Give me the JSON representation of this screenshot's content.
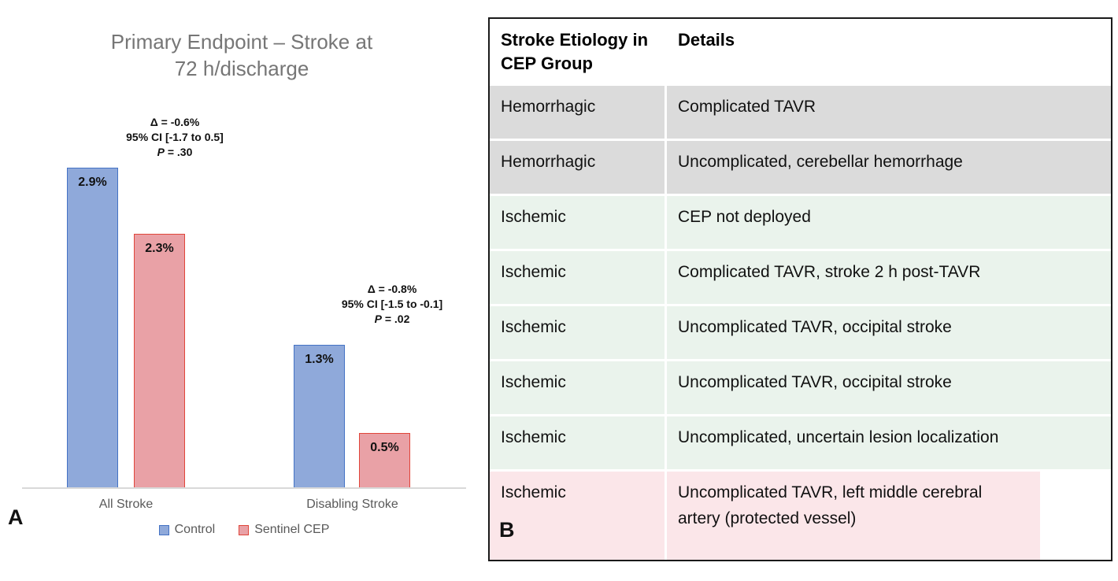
{
  "panel_a": {
    "label": "A"
  },
  "chart_data": {
    "type": "bar",
    "title_lines": [
      "Primary Endpoint – Stroke at",
      "72 h/discharge"
    ],
    "title": "Primary Endpoint – Stroke at 72 h/discharge",
    "categories": [
      "All Stroke",
      "Disabling Stroke"
    ],
    "series": [
      {
        "name": "Control",
        "values": [
          2.9,
          1.3
        ],
        "value_labels": [
          "2.9%",
          "1.3%"
        ],
        "fill": "#8fa9da",
        "border": "#4472c4"
      },
      {
        "name": "Sentinel CEP",
        "values": [
          2.3,
          0.5
        ],
        "value_labels": [
          "2.3%",
          "0.5%"
        ],
        "fill": "#e9a1a6",
        "border": "#e0453a"
      }
    ],
    "annotations": [
      {
        "delta": "Δ = -0.6%",
        "ci": "95% CI [-1.7 to 0.5]",
        "p_italic": "P",
        "p_rest": " = .30"
      },
      {
        "delta": "Δ = -0.8%",
        "ci": "95% CI [-1.5 to -0.1]",
        "p_italic": "P",
        "p_rest": " = .02"
      }
    ],
    "xlabel": "",
    "ylabel": "",
    "unit": "%",
    "y_axis_visible": false,
    "grid": false,
    "legend_position": "bottom",
    "ylim": [
      0,
      3.6
    ]
  },
  "panel_b": {
    "label": "B",
    "table": {
      "headers": [
        "Stroke Etiology in CEP Group",
        "Details"
      ],
      "rows": [
        {
          "etiology": "Hemorrhagic",
          "details": "Complicated TAVR",
          "color": "gray"
        },
        {
          "etiology": "Hemorrhagic",
          "details": "Uncomplicated, cerebellar hemorrhage",
          "color": "gray"
        },
        {
          "etiology": "Ischemic",
          "details": "CEP not deployed",
          "color": "green"
        },
        {
          "etiology": "Ischemic",
          "details": "Complicated TAVR, stroke 2 h post-TAVR",
          "color": "green"
        },
        {
          "etiology": "Ischemic",
          "details": "Uncomplicated TAVR, occipital stroke",
          "color": "green"
        },
        {
          "etiology": "Ischemic",
          "details": "Uncomplicated TAVR, occipital stroke",
          "color": "green"
        },
        {
          "etiology": "Ischemic",
          "details": "Uncomplicated, uncertain lesion localization",
          "color": "green"
        },
        {
          "etiology": "Ischemic",
          "details": "Uncomplicated TAVR, left middle cerebral artery (protected vessel)",
          "color": "pink"
        }
      ],
      "row_colors": {
        "gray": "#dbdbdb",
        "green": "#eaf3ec",
        "pink": "#fbe6e9"
      }
    }
  },
  "colors": {
    "axis_line": "#d9d9d9",
    "title_text": "#767676",
    "axis_label_text": "#595959",
    "table_border": "#1a1a1a"
  }
}
